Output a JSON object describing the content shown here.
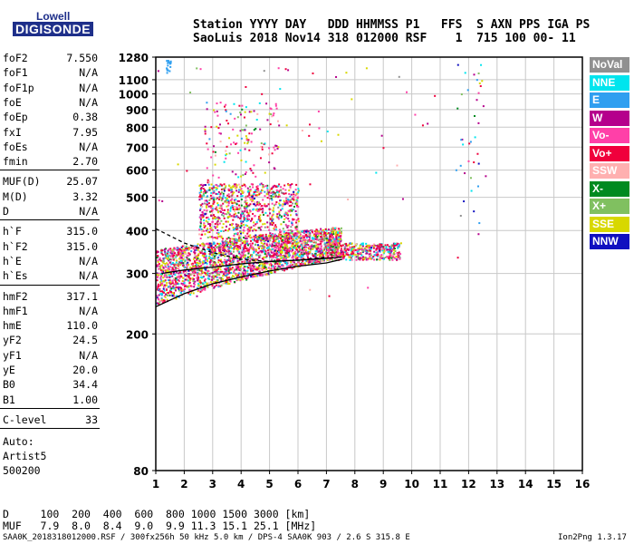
{
  "logo": {
    "line1": "Lowell",
    "line2": "DIGISONDE"
  },
  "header": {
    "line1": "Station YYYY DAY   DDD HHMMSS P1   FFS  S AXN PPS IGA PS",
    "line2": "SaoLuis 2018 Nov14 318 012000 RSF    1  715 100 00- 11"
  },
  "params_group1": [
    {
      "k": "foF2",
      "v": "7.550"
    },
    {
      "k": "foF1",
      "v": "N/A"
    },
    {
      "k": "foF1p",
      "v": "N/A"
    },
    {
      "k": "foE",
      "v": "N/A"
    },
    {
      "k": "foEp",
      "v": "0.38"
    },
    {
      "k": "fxI",
      "v": "7.95"
    },
    {
      "k": "foEs",
      "v": "N/A"
    },
    {
      "k": "fmin",
      "v": "2.70"
    }
  ],
  "params_group2": [
    {
      "k": "MUF(D)",
      "v": "25.07"
    },
    {
      "k": "M(D)",
      "v": "3.32"
    },
    {
      "k": "D",
      "v": "N/A"
    }
  ],
  "params_group3": [
    {
      "k": "h`F",
      "v": "315.0"
    },
    {
      "k": "h`F2",
      "v": "315.0"
    },
    {
      "k": "h`E",
      "v": "N/A"
    },
    {
      "k": "h`Es",
      "v": "N/A"
    }
  ],
  "params_group4": [
    {
      "k": "hmF2",
      "v": "317.1"
    },
    {
      "k": "hmF1",
      "v": "N/A"
    },
    {
      "k": "hmE",
      "v": "110.0"
    },
    {
      "k": "yF2",
      "v": "24.5"
    },
    {
      "k": "yF1",
      "v": "N/A"
    },
    {
      "k": "yE",
      "v": "20.0"
    },
    {
      "k": "B0",
      "v": "34.4"
    },
    {
      "k": "B1",
      "v": "1.00"
    }
  ],
  "c_level": {
    "k": "C-level",
    "v": "33"
  },
  "auto": {
    "line1": "Auto:",
    "line2": "Artist5",
    "line3": "500200"
  },
  "legend": [
    {
      "label": "NoVal",
      "color": "#909090",
      "text": "#ffffff"
    },
    {
      "label": "NNE",
      "color": "#00e5ee",
      "text": "#ffffff"
    },
    {
      "label": "E",
      "color": "#2f9ff0",
      "text": "#ffffff"
    },
    {
      "label": "W",
      "color": "#b5008c",
      "text": "#ffffff"
    },
    {
      "label": "Vo-",
      "color": "#ff40a8",
      "text": "#ffffff"
    },
    {
      "label": "Vo+",
      "color": "#f0003c",
      "text": "#ffffff"
    },
    {
      "label": "SSW",
      "color": "#ffb0b0",
      "text": "#ffffff"
    },
    {
      "label": "X-",
      "color": "#008a20",
      "text": "#ffffff"
    },
    {
      "label": "X+",
      "color": "#80c060",
      "text": "#ffffff"
    },
    {
      "label": "SSE",
      "color": "#d8d800",
      "text": "#ffffff"
    },
    {
      "label": "NNW",
      "color": "#1010c0",
      "text": "#ffffff"
    }
  ],
  "muf_table": {
    "d_row": "D     100  200  400  600  800 1000 1500 3000 [km]",
    "muf_row": "MUF   7.9  8.0  8.4  9.0  9.9 11.3 15.1 25.1 [MHz]"
  },
  "footer": {
    "left": "SAA0K_2018318012000.RSF / 300fx256h 50 kHz 5.0 km / DPS-4 SAA0K 903 / 2.6 S 315.8 E",
    "right": "Ion2Png 1.3.17"
  },
  "chart_data": {
    "type": "scatter",
    "title": "",
    "xlabel": "",
    "ylabel": "",
    "xlim": [
      1,
      16
    ],
    "ylim_label": [
      80,
      1280
    ],
    "y_scale": "log",
    "x_ticks": [
      1,
      2,
      3,
      4,
      5,
      6,
      7,
      8,
      9,
      10,
      11,
      12,
      13,
      14,
      15,
      16
    ],
    "y_ticks": [
      80,
      200,
      300,
      400,
      500,
      600,
      700,
      800,
      900,
      1000,
      1100,
      1280
    ],
    "grid": true,
    "trace_lower": [
      [
        1,
        240
      ],
      [
        2,
        262
      ],
      [
        3,
        280
      ],
      [
        4,
        293
      ],
      [
        5,
        305
      ],
      [
        6,
        315
      ],
      [
        7,
        322
      ],
      [
        7.55,
        330
      ]
    ],
    "trace_upper": [
      [
        1.2,
        300
      ],
      [
        2,
        307
      ],
      [
        3,
        313
      ],
      [
        4,
        320
      ],
      [
        5,
        325
      ],
      [
        6,
        328
      ],
      [
        7,
        332
      ],
      [
        7.55,
        335
      ]
    ],
    "trace_dashed": [
      [
        1,
        405
      ],
      [
        2,
        368
      ],
      [
        3,
        345
      ],
      [
        4,
        330
      ],
      [
        5,
        325
      ],
      [
        6,
        328
      ],
      [
        7,
        335
      ]
    ],
    "clusters": [
      {
        "x_range": [
          1,
          8
        ],
        "h_range": [
          250,
          400
        ],
        "density": "high"
      },
      {
        "x_range": [
          2.5,
          6
        ],
        "h_range": [
          400,
          550
        ],
        "density": "medium"
      },
      {
        "x_range": [
          7,
          10
        ],
        "h_range": [
          330,
          370
        ],
        "density": "medium"
      }
    ]
  }
}
